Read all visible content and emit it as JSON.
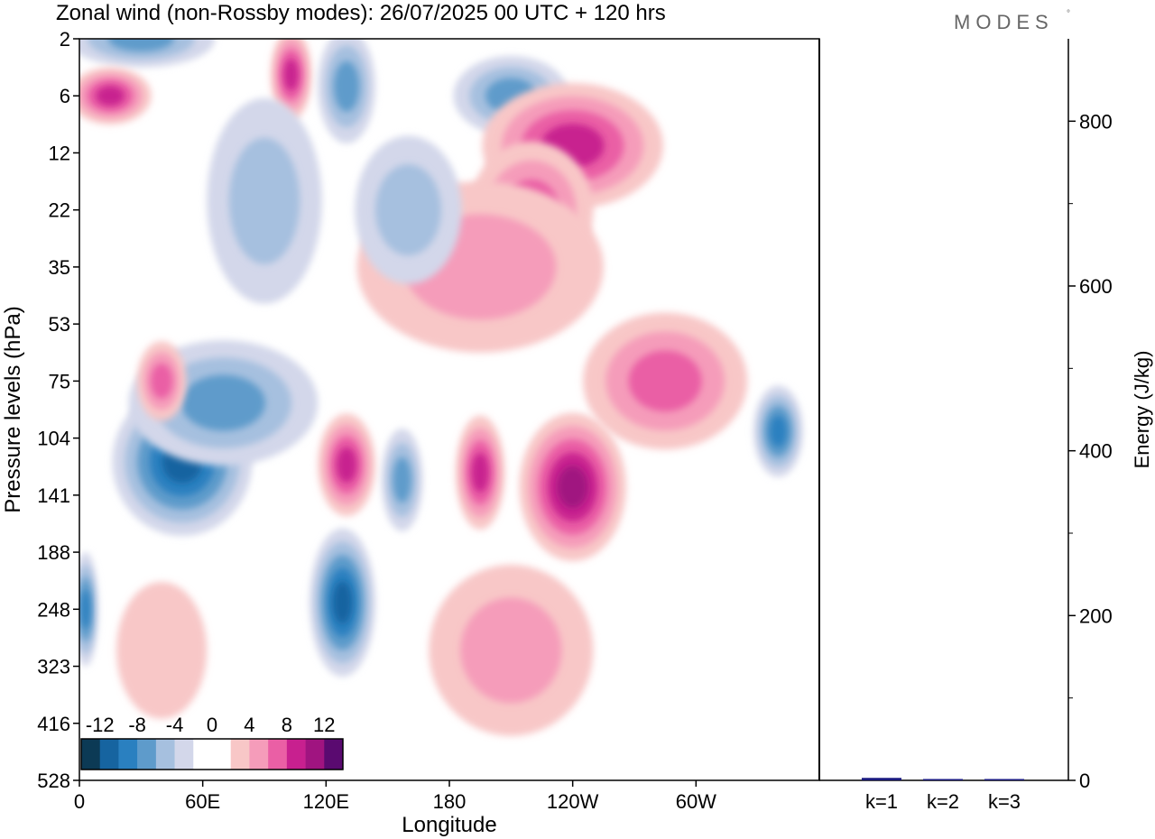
{
  "chart_data": {
    "type": "heatmap",
    "title": "Zonal wind (non-Rossby modes):  26/07/2025  00 UTC  + 120 hrs",
    "brand": "MODES",
    "brand_mark": "°",
    "xlabel": "Longitude",
    "ylabel": "Pressure levels (hPa)",
    "x_ticks": [
      "0",
      "60E",
      "120E",
      "180",
      "120W",
      "60W"
    ],
    "x_range": [
      0,
      360
    ],
    "y_ticks": [
      "2",
      "6",
      "12",
      "22",
      "35",
      "53",
      "75",
      "104",
      "141",
      "188",
      "248",
      "323",
      "416",
      "528"
    ],
    "colorbar": {
      "labels": [
        "-12",
        "-8",
        "-4",
        "0",
        "4",
        "8",
        "12"
      ],
      "colors": [
        "#0c3a55",
        "#1664a0",
        "#2a80c0",
        "#5e9bcb",
        "#a6c0df",
        "#d3d7ea",
        "#ffffff",
        "#ffffff",
        "#f8c7c7",
        "#f59cba",
        "#ea5fa5",
        "#c8208f",
        "#a01480",
        "#5a0a70"
      ]
    },
    "features": [
      {
        "lon": 30,
        "level": 2,
        "value": -6,
        "w": 36,
        "h": 1.0
      },
      {
        "lon": 15,
        "level": 6,
        "value": 8,
        "w": 20,
        "h": 1.0
      },
      {
        "lon": 103,
        "level": 4,
        "value": 8,
        "w": 10,
        "h": 1.6
      },
      {
        "lon": 130,
        "level": 5,
        "value": -6,
        "w": 14,
        "h": 2.0
      },
      {
        "lon": 210,
        "level": 6,
        "value": -6,
        "w": 28,
        "h": 1.4
      },
      {
        "lon": 240,
        "level": 11,
        "value": 8,
        "w": 44,
        "h": 2.2
      },
      {
        "lon": 220,
        "level": 22,
        "value": 6,
        "w": 30,
        "h": 2.4
      },
      {
        "lon": 195,
        "level": 35,
        "value": 4,
        "w": 60,
        "h": 3.0
      },
      {
        "lon": 90,
        "level": 20,
        "value": -4,
        "w": 28,
        "h": 3.6
      },
      {
        "lon": 160,
        "level": 22,
        "value": -4,
        "w": 26,
        "h": 2.6
      },
      {
        "lon": 45,
        "level": 110,
        "value": -14,
        "w": 20,
        "h": 2.0
      },
      {
        "lon": 50,
        "level": 118,
        "value": -11,
        "w": 34,
        "h": 2.6
      },
      {
        "lon": 70,
        "level": 85,
        "value": -7,
        "w": 46,
        "h": 2.2
      },
      {
        "lon": 40,
        "level": 75,
        "value": 7,
        "w": 12,
        "h": 1.4
      },
      {
        "lon": 128,
        "level": 240,
        "value": -11,
        "w": 16,
        "h": 2.6
      },
      {
        "lon": 157,
        "level": 130,
        "value": -6,
        "w": 10,
        "h": 1.8
      },
      {
        "lon": 130,
        "level": 120,
        "value": 8,
        "w": 14,
        "h": 1.8
      },
      {
        "lon": 195,
        "level": 125,
        "value": 8,
        "w": 12,
        "h": 2.0
      },
      {
        "lon": 240,
        "level": 135,
        "value": 10,
        "w": 26,
        "h": 2.6
      },
      {
        "lon": 285,
        "level": 75,
        "value": 6,
        "w": 40,
        "h": 2.4
      },
      {
        "lon": 340,
        "level": 100,
        "value": -8,
        "w": 12,
        "h": 1.6
      },
      {
        "lon": 40,
        "level": 300,
        "value": 3,
        "w": 22,
        "h": 2.4
      },
      {
        "lon": 210,
        "level": 300,
        "value": 4,
        "w": 40,
        "h": 3.0
      },
      {
        "lon": 3,
        "level": 248,
        "value": -8,
        "w": 6,
        "h": 2.0
      }
    ]
  },
  "energy_panel": {
    "ylabel": "Energy (J/kg)",
    "y_ticks": [
      "0",
      "200",
      "400",
      "600",
      "800"
    ],
    "ylim": [
      0,
      900
    ],
    "categories": [
      "k=1",
      "k=2",
      "k=3"
    ],
    "values": [
      3,
      1.5,
      1
    ],
    "bar_color": "#1a1a80"
  }
}
